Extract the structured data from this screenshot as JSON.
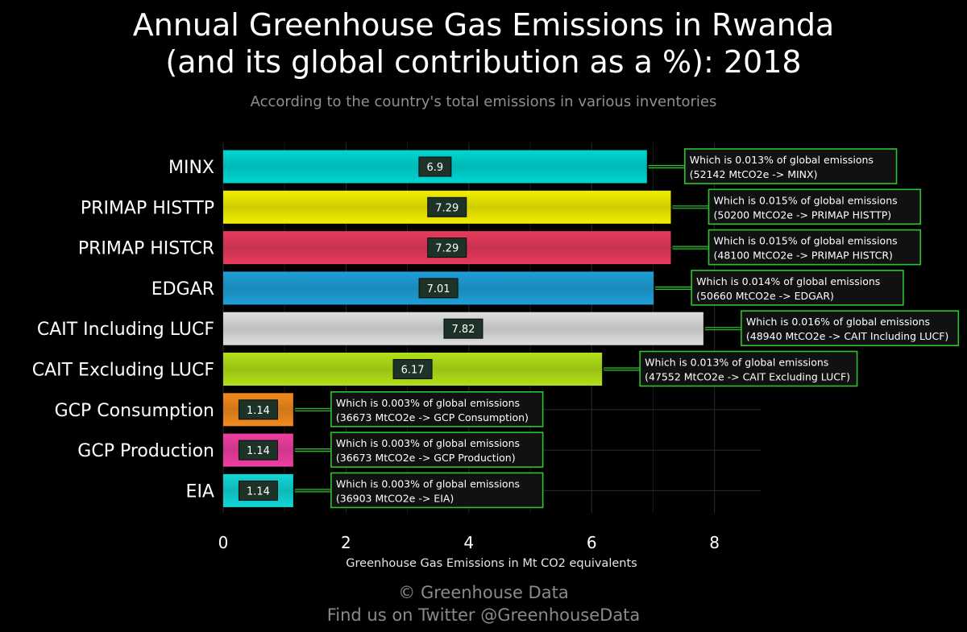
{
  "title_lines": [
    "Annual Greenhouse Gas Emissions in Rwanda",
    "(and its global contribution as a %): 2018"
  ],
  "subtitle": "According to the country's total emissions in various inventories",
  "credit": [
    "© Greenhouse Data",
    "Find us on Twitter @GreenhouseData"
  ],
  "chart_data": {
    "type": "bar",
    "orientation": "horizontal",
    "title": "Annual Greenhouse Gas Emissions in Rwanda (and its global contribution as a %): 2018",
    "subtitle": "According to the country's total emissions in various inventories",
    "xlabel": "Greenhouse Gas Emissions in Mt CO2 equivalents",
    "ylabel": "",
    "xlim": [
      0,
      8.8
    ],
    "xticks": [
      0,
      2,
      4,
      6,
      8
    ],
    "grid": true,
    "legend": "none",
    "categories": [
      "MINX",
      "PRIMAP HISTTP",
      "PRIMAP HISTCR",
      "EDGAR",
      "CAIT Including LUCF",
      "CAIT Excluding LUCF",
      "GCP Consumption",
      "GCP Production",
      "EIA"
    ],
    "values": [
      6.9,
      7.29,
      7.29,
      7.01,
      7.82,
      6.17,
      1.14,
      1.14,
      1.14
    ],
    "value_labels": [
      "6.9",
      "7.29",
      "7.29",
      "7.01",
      "7.82",
      "6.17",
      "1.14",
      "1.14",
      "1.14"
    ],
    "colors": [
      "#00d7d2",
      "#f2ee00",
      "#e83a5e",
      "#1e9fd8",
      "#dedede",
      "#b2e018",
      "#f28a1e",
      "#ee3fa0",
      "#12d6d6"
    ],
    "annotations": [
      [
        "Which is 0.013% of global emissions",
        "(52142 MtCO2e -> MINX)"
      ],
      [
        "Which is 0.015% of global emissions",
        "(50200 MtCO2e -> PRIMAP HISTTP)"
      ],
      [
        "Which is 0.015% of global emissions",
        "(48100 MtCO2e -> PRIMAP HISTCR)"
      ],
      [
        "Which is 0.014% of global emissions",
        "(50660 MtCO2e -> EDGAR)"
      ],
      [
        "Which is 0.016% of global emissions",
        "(48940 MtCO2e -> CAIT Including LUCF)"
      ],
      [
        "Which is 0.013% of global emissions",
        "(47552 MtCO2e -> CAIT Excluding LUCF)"
      ],
      [
        "Which is 0.003% of global emissions",
        "(36673 MtCO2e -> GCP Consumption)"
      ],
      [
        "Which is 0.003% of global emissions",
        "(36673 MtCO2e -> GCP Production)"
      ],
      [
        "Which is 0.003% of global emissions",
        "(36903 MtCO2e -> EIA)"
      ]
    ]
  }
}
